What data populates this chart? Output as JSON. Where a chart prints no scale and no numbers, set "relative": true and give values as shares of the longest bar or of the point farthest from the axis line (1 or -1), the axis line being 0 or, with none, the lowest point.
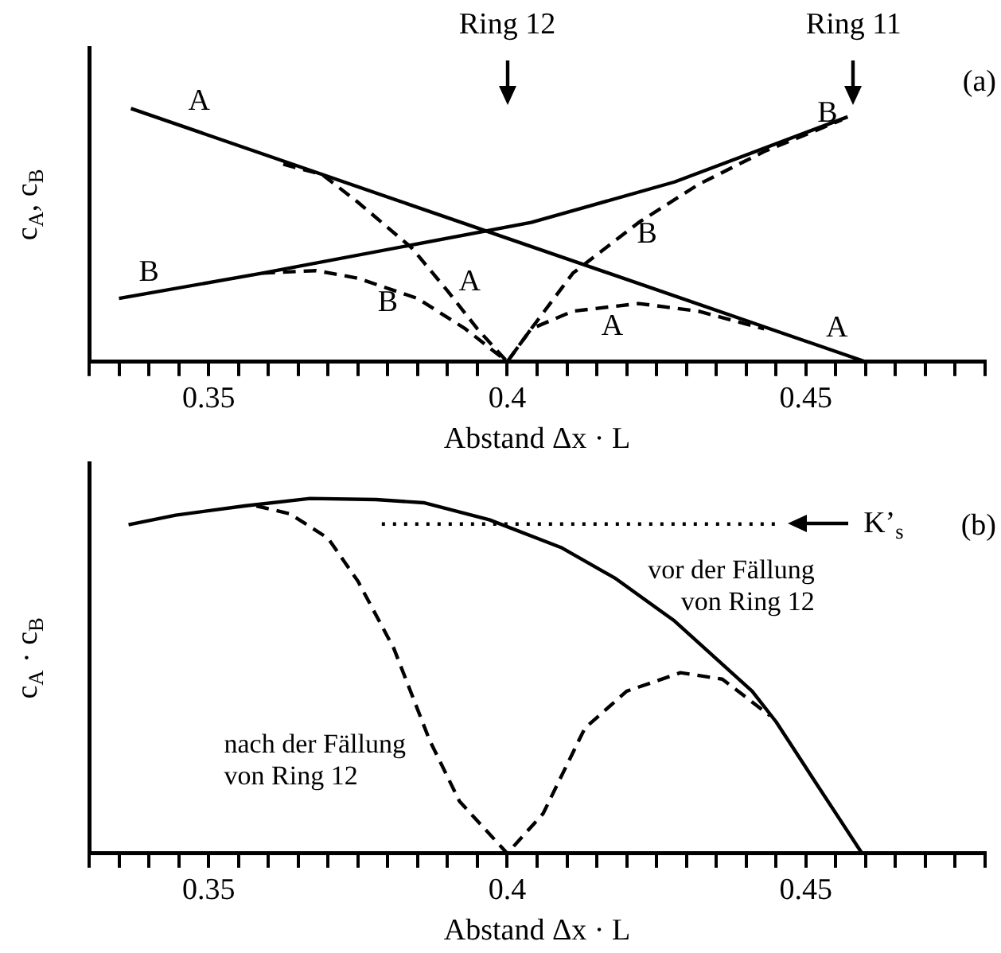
{
  "chart_data": [
    {
      "type": "line",
      "xlabel": "Abstand Δx · L",
      "ylabel": "c$_{A}$, c$_{B}$",
      "relative": true,
      "marker": "none",
      "grid": false,
      "legend": false,
      "xlim": [
        0.33,
        0.48
      ],
      "xticks": [
        {
          "value": 0.33,
          "label": null
        },
        {
          "value": 0.335,
          "label": null
        },
        {
          "value": 0.34,
          "label": null
        },
        {
          "value": 0.345,
          "label": null
        },
        0.35,
        {
          "value": 0.355,
          "label": null
        },
        {
          "value": 0.36,
          "label": null
        },
        {
          "value": 0.365,
          "label": null
        },
        {
          "value": 0.37,
          "label": null
        },
        {
          "value": 0.375,
          "label": null
        },
        {
          "value": 0.38,
          "label": null
        },
        {
          "value": 0.385,
          "label": null
        },
        {
          "value": 0.39,
          "label": null
        },
        {
          "value": 0.395,
          "label": null
        },
        0.4,
        {
          "value": 0.405,
          "label": null
        },
        {
          "value": 0.41,
          "label": null
        },
        {
          "value": 0.415,
          "label": null
        },
        {
          "value": 0.42,
          "label": null
        },
        {
          "value": 0.425,
          "label": null
        },
        {
          "value": 0.43,
          "label": null
        },
        {
          "value": 0.435,
          "label": null
        },
        {
          "value": 0.44,
          "label": null
        },
        {
          "value": 0.445,
          "label": null
        },
        0.45,
        {
          "value": 0.455,
          "label": null
        },
        {
          "value": 0.46,
          "label": null
        },
        {
          "value": 0.465,
          "label": null
        },
        {
          "value": 0.47,
          "label": null
        },
        {
          "value": 0.475,
          "label": null
        },
        {
          "value": 0.48,
          "label": null
        }
      ],
      "series": [
        {
          "type": "line",
          "color": "#000000",
          "line_style": "solid",
          "x": [
            0.337,
            0.46
          ],
          "values": [
            1,
            0
          ]
        },
        {
          "type": "line",
          "color": "#000000",
          "line_style": "solid",
          "x": [
            0.335,
            0.359,
            0.404,
            0.428,
            0.457
          ],
          "values": [
            0.25,
            0.35,
            0.55,
            0.71,
            0.967
          ]
        },
        {
          "type": "line",
          "color": "#000000",
          "line_style": "dashed",
          "x": [
            0.3625,
            0.369,
            0.375,
            0.384,
            0.39,
            0.395,
            0.4,
            0.404,
            0.411,
            0.422,
            0.432,
            0.443
          ],
          "values": [
            0.78,
            0.74,
            0.63,
            0.45,
            0.28,
            0.13,
            0,
            0.13,
            0.2,
            0.23,
            0.2,
            0.13
          ]
        },
        {
          "type": "line",
          "color": "#000000",
          "line_style": "dashed",
          "x": [
            0.359,
            0.368,
            0.375,
            0.385,
            0.393,
            0.4,
            0.404,
            0.411,
            0.422,
            0.432,
            0.443,
            0.456
          ],
          "values": [
            0.35,
            0.36,
            0.33,
            0.25,
            0.13,
            0,
            0.13,
            0.35,
            0.55,
            0.7,
            0.83,
            0.955
          ]
        }
      ],
      "annotations": [
        "A",
        "A",
        "A",
        "A",
        "B",
        "B",
        "B",
        "B",
        "Ring 12",
        "Ring 11",
        "(a)"
      ]
    },
    {
      "type": "line",
      "xlabel": "Abstand Δx · L",
      "ylabel": "c$_{A}$ · c$_{B}$",
      "relative": true,
      "marker": "none",
      "grid": false,
      "legend": false,
      "xlim": [
        0.33,
        0.48
      ],
      "xticks": [
        {
          "value": 0.33,
          "label": null
        },
        {
          "value": 0.335,
          "label": null
        },
        {
          "value": 0.34,
          "label": null
        },
        {
          "value": 0.345,
          "label": null
        },
        0.35,
        {
          "value": 0.355,
          "label": null
        },
        {
          "value": 0.36,
          "label": null
        },
        {
          "value": 0.365,
          "label": null
        },
        {
          "value": 0.37,
          "label": null
        },
        {
          "value": 0.375,
          "label": null
        },
        {
          "value": 0.38,
          "label": null
        },
        {
          "value": 0.385,
          "label": null
        },
        {
          "value": 0.39,
          "label": null
        },
        {
          "value": 0.395,
          "label": null
        },
        0.4,
        {
          "value": 0.405,
          "label": null
        },
        {
          "value": 0.41,
          "label": null
        },
        {
          "value": 0.415,
          "label": null
        },
        {
          "value": 0.42,
          "label": null
        },
        {
          "value": 0.425,
          "label": null
        },
        {
          "value": 0.43,
          "label": null
        },
        {
          "value": 0.435,
          "label": null
        },
        {
          "value": 0.44,
          "label": null
        },
        {
          "value": 0.445,
          "label": null
        },
        0.45,
        {
          "value": 0.455,
          "label": null
        },
        {
          "value": 0.46,
          "label": null
        },
        {
          "value": 0.465,
          "label": null
        },
        {
          "value": 0.47,
          "label": null
        },
        {
          "value": 0.475,
          "label": null
        },
        {
          "value": 0.48,
          "label": null
        }
      ],
      "series": [
        {
          "type": "line",
          "color": "#000000",
          "line_style": "solid",
          "x": [
            0.3366,
            0.3445,
            0.356,
            0.367,
            0.378,
            0.386,
            0.397,
            0.409,
            0.418,
            0.428,
            0.441,
            0.445,
            0.451,
            0.4594
          ],
          "values": [
            0.926,
            0.953,
            0.979,
            1,
            0.997,
            0.988,
            0.94,
            0.862,
            0.776,
            0.655,
            0.457,
            0.371,
            0.216,
            0
          ]
        },
        {
          "type": "line",
          "color": "#000000",
          "line_style": "dashed",
          "x": [
            0.358,
            0.3636,
            0.37,
            0.375,
            0.381,
            0.387,
            0.392,
            0.4,
            0.406,
            0.413,
            0.42,
            0.429,
            0.436,
            0.444
          ],
          "values": [
            0.979,
            0.957,
            0.888,
            0.767,
            0.578,
            0.319,
            0.147,
            0,
            0.112,
            0.353,
            0.457,
            0.509,
            0.491,
            0.388
          ]
        },
        {
          "type": "line",
          "color": "#000000",
          "line_style": "dotted",
          "x": [
            0.379,
            0.446
          ],
          "values": [
            0.928,
            0.928
          ]
        }
      ],
      "annotations": [
        "K’$_{s}$",
        "vor der Fällung von Ring 12",
        "nach der Fällung von Ring 12",
        "(b)"
      ]
    }
  ]
}
